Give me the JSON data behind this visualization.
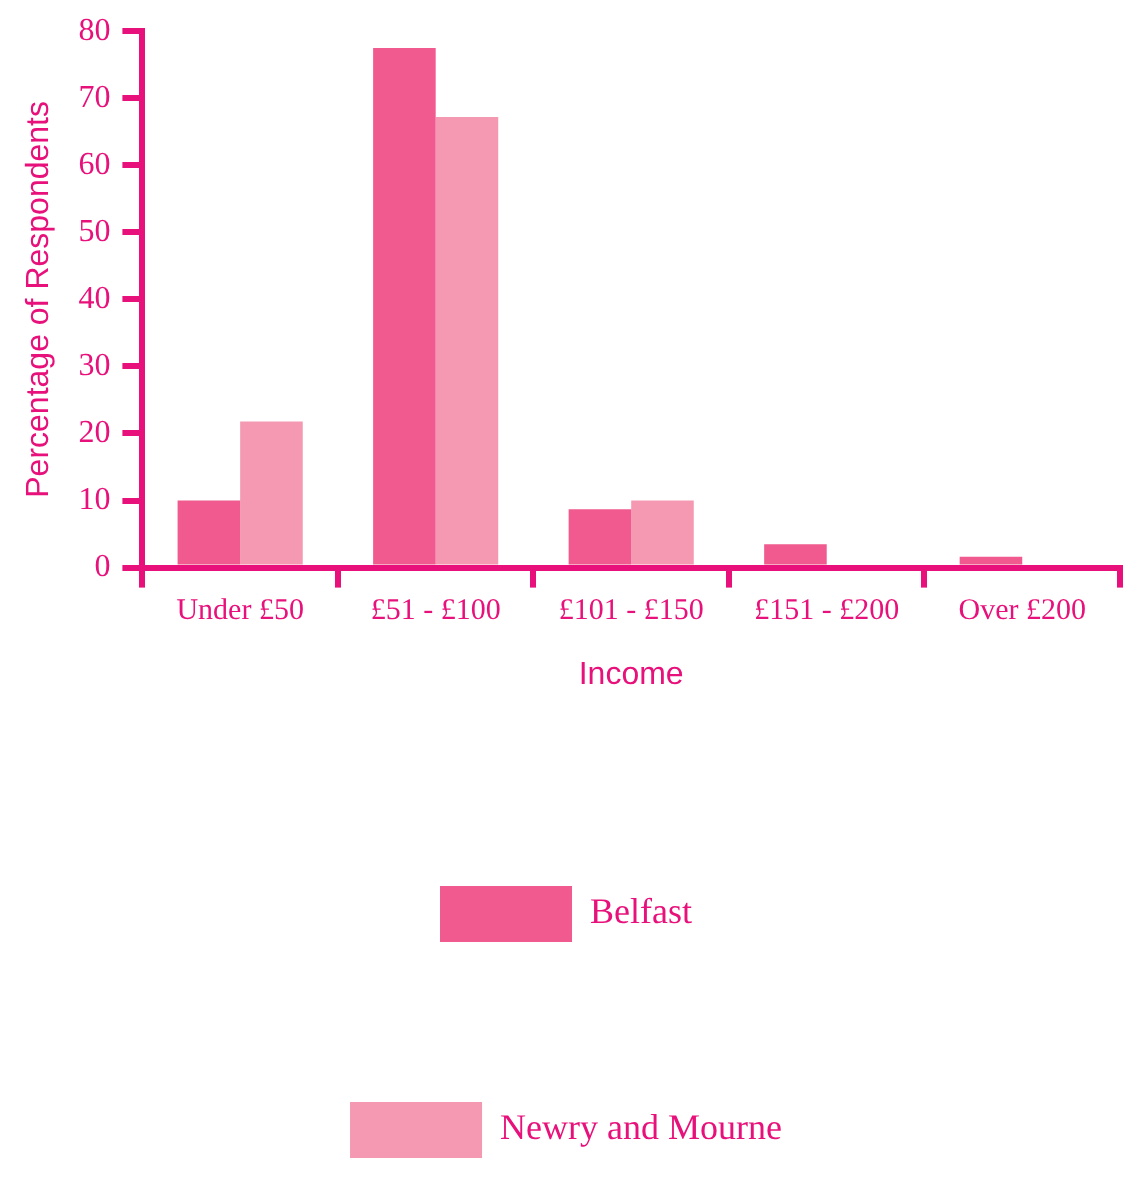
{
  "chart_data": {
    "type": "bar",
    "xlabel": "Income",
    "ylabel": "Percentage of Respondents",
    "categories": [
      "Under £50",
      "£51 - £100",
      "£101 - £150",
      "£151 - £200",
      "Over £200"
    ],
    "series": [
      {
        "name": "Belfast",
        "color": "#f05a8e",
        "values": [
          10,
          77.5,
          8.7,
          3.5,
          1.6
        ]
      },
      {
        "name": "Newry and Mourne",
        "color": "#f598b2",
        "values": [
          21.8,
          67.2,
          10,
          0,
          0
        ]
      }
    ],
    "ylim": [
      0,
      80
    ],
    "yticks": [
      0,
      10,
      20,
      30,
      40,
      50,
      60,
      70,
      80
    ],
    "grid": false,
    "legend": "bottom"
  }
}
